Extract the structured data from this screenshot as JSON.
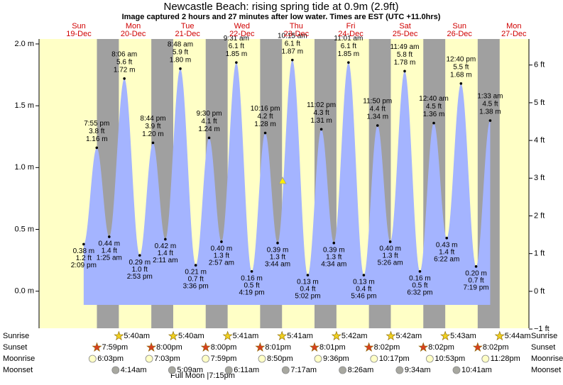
{
  "chart_data": {
    "type": "tide",
    "title": "Newcastle Beach: rising  spring tide at 0.9m (2.9ft)",
    "subtitle": "Image captured 2 hours and 27 minutes after low water. Times are EST (UTC +11.0hrs)",
    "day_names": [
      "Sun",
      "Mon",
      "Tue",
      "Wed",
      "Thu",
      "Fri",
      "Sat",
      "Sun",
      "Mon"
    ],
    "categories": [
      "19-Dec",
      "20-Dec",
      "21-Dec",
      "22-Dec",
      "23-Dec",
      "24-Dec",
      "25-Dec",
      "26-Dec",
      "27-Dec"
    ],
    "x": [
      "2:09 pm",
      "7:55 pm",
      "1:25 am",
      "8:06 am",
      "2:53 pm",
      "8:44 pm",
      "2:11 am",
      "8:48 am",
      "3:36 pm",
      "9:30 pm",
      "2:57 am",
      "9:31 am",
      "4:19 pm",
      "10:16 pm",
      "3:44 am",
      "10:15 am",
      "5:02 pm",
      "11:02 pm",
      "4:34 am",
      "11:01 am",
      "5:46 pm",
      "11:50 pm",
      "5:26 am",
      "11:49 am",
      "6:32 pm",
      "12:40 am",
      "6:22 am",
      "12:40 pm",
      "7:19 pm",
      "1:33 am"
    ],
    "values": [
      0.38,
      1.16,
      0.44,
      1.72,
      0.29,
      1.2,
      0.42,
      1.8,
      0.21,
      1.24,
      0.4,
      1.85,
      0.16,
      1.28,
      0.39,
      1.87,
      0.13,
      1.31,
      0.39,
      1.85,
      0.13,
      1.34,
      0.4,
      1.78,
      0.16,
      1.36,
      0.43,
      1.68,
      0.2,
      1.38
    ],
    "value_labels": [
      "0.38 m",
      "1.16 m",
      "0.44 m",
      "1.72 m",
      "0.29 m",
      "1.20 m",
      "0.42 m",
      "1.80 m",
      "0.21 m",
      "1.24 m",
      "0.40 m",
      "1.85 m",
      "0.16 m",
      "1.28 m",
      "0.39 m",
      "1.87 m",
      "0.13 m",
      "1.31 m",
      "0.39 m",
      "1.85 m",
      "0.13 m",
      "1.34 m",
      "0.40 m",
      "1.78 m",
      "0.16 m",
      "1.36 m",
      "0.43 m",
      "1.68 m",
      "0.20 m",
      "1.38 m"
    ],
    "ft_labels": [
      "1.2 ft",
      "3.8 ft",
      "1.4 ft",
      "5.6 ft",
      "1.0 ft",
      "3.9 ft",
      "1.4 ft",
      "5.9 ft",
      "0.7 ft",
      "4.1 ft",
      "1.3 ft",
      "6.1 ft",
      "0.5 ft",
      "4.2 ft",
      "1.3 ft",
      "6.1 ft",
      "0.4 ft",
      "4.3 ft",
      "1.3 ft",
      "6.1 ft",
      "0.4 ft",
      "4.4 ft",
      "1.3 ft",
      "5.8 ft",
      "0.5 ft",
      "4.5 ft",
      "1.4 ft",
      "5.5 ft",
      "0.7 ft",
      "4.5 ft"
    ],
    "color": "#a4b4ff",
    "ylim": [
      -0.3,
      2.04
    ],
    "yticks": [
      {
        "value": 0,
        "label": "0.0 m"
      },
      {
        "value": 0.5,
        "label": "0.5 m"
      },
      {
        "value": 1,
        "label": "1.0 m"
      },
      {
        "value": 1.5,
        "label": "1.5 m"
      },
      {
        "value": 2,
        "label": "2.0 m"
      }
    ],
    "y2lim": [
      -0.98,
      6.69
    ],
    "y2ticks": [
      {
        "value": -1,
        "label": "−1 ft"
      },
      {
        "value": 0,
        "label": "0 ft"
      },
      {
        "value": 1,
        "label": "1 ft"
      },
      {
        "value": 2,
        "label": "2 ft"
      },
      {
        "value": 3,
        "label": "3 ft"
      },
      {
        "value": 4,
        "label": "4 ft"
      },
      {
        "value": 5,
        "label": "5 ft"
      },
      {
        "value": 6,
        "label": "6 ft"
      }
    ],
    "rows": [
      "Sunrise",
      "Sunset",
      "Moonrise",
      "Moonset"
    ],
    "sunrise": [
      "5:40am",
      "5:40am",
      "5:41am",
      "5:41am",
      "5:42am",
      "5:42am",
      "5:43am",
      "5:44am"
    ],
    "sunset": [
      "7:59pm",
      "8:00pm",
      "8:00pm",
      "8:01pm",
      "8:01pm",
      "8:02pm",
      "8:02pm",
      "8:02pm"
    ],
    "moonrise": [
      "6:03pm",
      "7:03pm",
      "7:59pm",
      "8:50pm",
      "9:36pm",
      "10:17pm",
      "10:53pm",
      "11:28pm"
    ],
    "moonset": [
      "4:14am",
      "5:09am",
      "6:11am",
      "7:17am",
      "8:26am",
      "9:34am",
      "10:41am"
    ],
    "full_moon": "Full Moon |7:15pm"
  }
}
